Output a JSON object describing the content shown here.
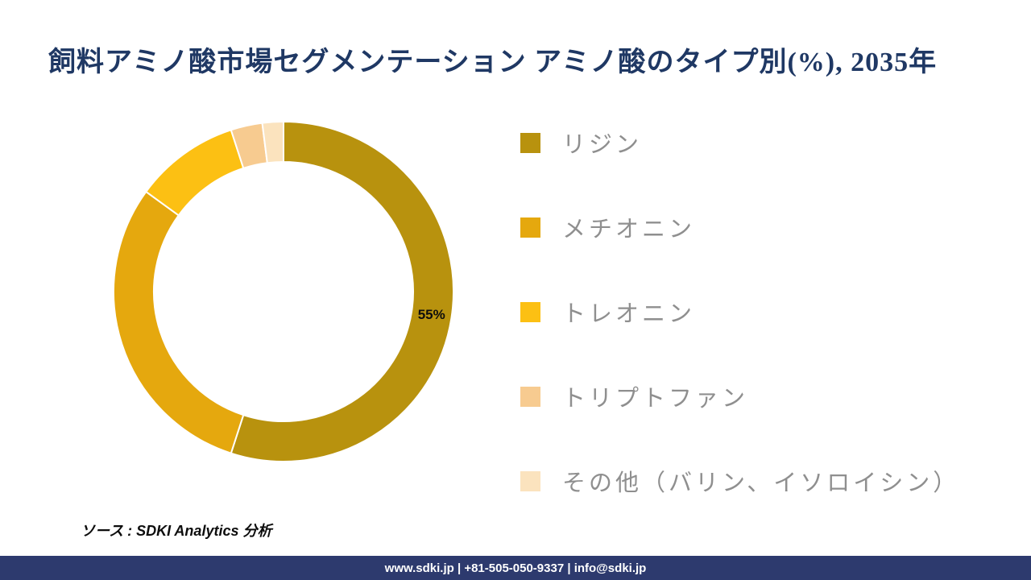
{
  "title": "飼料アミノ酸市場セグメンテーション アミノ酸のタイプ別(%), 2035年",
  "chart_data": {
    "type": "pie",
    "subtype": "donut",
    "unit": "%",
    "total": 100,
    "start_angle_deg": 0,
    "direction": "clockwise",
    "legend_position": "right",
    "segments": [
      {
        "label": "リジン",
        "value": 55,
        "color": "#B8920E",
        "data_label": "55%"
      },
      {
        "label": "メチオニン",
        "value": 30,
        "color": "#E5A80E"
      },
      {
        "label": "トレオニン",
        "value": 10,
        "color": "#FCC013"
      },
      {
        "label": "トリプトファン",
        "value": 3,
        "color": "#F7CB90"
      },
      {
        "label": "その他（バリン、イソロイシン）",
        "value": 2,
        "color": "#FBE3BE"
      }
    ]
  },
  "source_note": "ソース : SDKI Analytics 分析",
  "footer": {
    "text": "www.sdki.jp | +81-505-050-9337 | info@sdki.jp",
    "bg_color": "#2D3A6E"
  },
  "colors": {
    "title": "#1F3864",
    "legend_text": "#8F8F8F",
    "data_label": "#0d0d0d"
  }
}
